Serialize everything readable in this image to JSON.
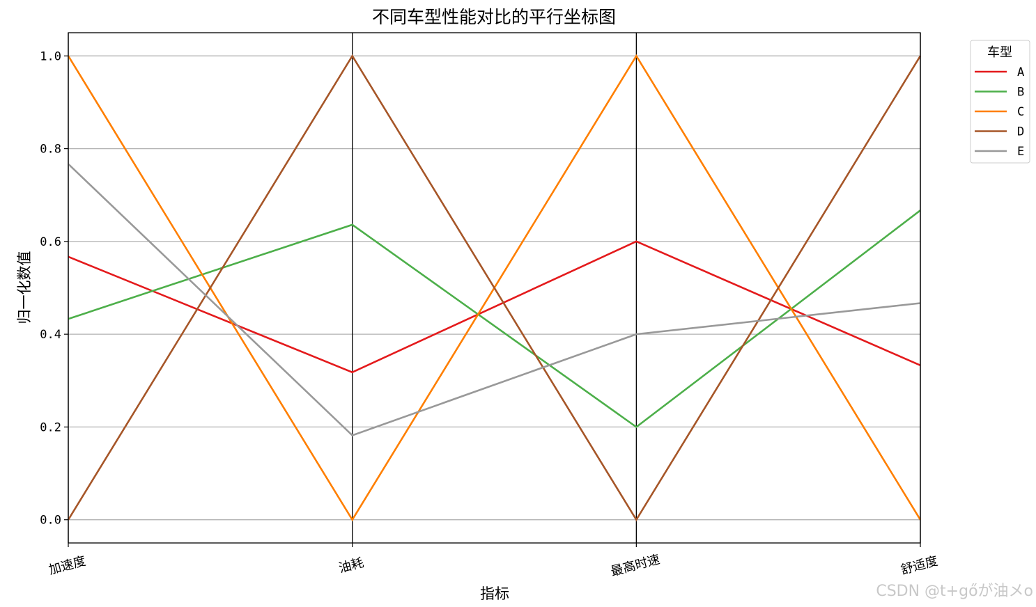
{
  "watermark": "CSDN @t+gőが油メo",
  "chart_data": {
    "type": "line",
    "subtype": "parallel-coordinates",
    "title": "不同车型性能对比的平行坐标图",
    "xlabel": "指标",
    "ylabel": "归一化数值",
    "categories": [
      "加速度",
      "油耗",
      "最高时速",
      "舒适度"
    ],
    "ylim": [
      -0.05,
      1.05
    ],
    "yticks": [
      0.0,
      0.2,
      0.4,
      0.6,
      0.8,
      1.0
    ],
    "ytick_labels": [
      "0.0",
      "0.2",
      "0.4",
      "0.6",
      "0.8",
      "1.0"
    ],
    "grid": "horizontal",
    "legend": {
      "title": "车型",
      "placement": "outside-top-right"
    },
    "series": [
      {
        "name": "A",
        "color": "#e41a1c",
        "values": [
          0.567,
          0.318,
          0.6,
          0.333
        ]
      },
      {
        "name": "B",
        "color": "#4daf4a",
        "values": [
          0.433,
          0.636,
          0.2,
          0.667
        ]
      },
      {
        "name": "C",
        "color": "#ff7f00",
        "values": [
          1.0,
          0.0,
          1.0,
          0.0
        ]
      },
      {
        "name": "D",
        "color": "#a65628",
        "values": [
          0.0,
          1.0,
          0.0,
          1.0
        ]
      },
      {
        "name": "E",
        "color": "#999999",
        "values": [
          0.767,
          0.182,
          0.4,
          0.467
        ]
      }
    ]
  }
}
